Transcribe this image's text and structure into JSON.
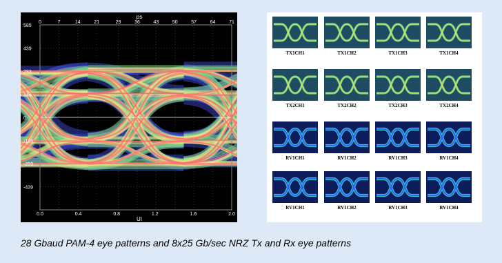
{
  "caption": "28 Gbaud PAM-4 eye patterns and 8x25 Gb/sec NRZ Tx and Rx eye patterns",
  "chart_data": [
    {
      "type": "eye-diagram",
      "modulation": "PAM-4",
      "top_axis": {
        "label": "ps",
        "ticks": [
          "0",
          "7",
          "14",
          "21",
          "29",
          "36",
          "43",
          "50",
          "57",
          "64",
          "71"
        ],
        "range": [
          0,
          71
        ]
      },
      "bottom_axis": {
        "label": "UI",
        "ticks": [
          "0.0",
          "0.4",
          "0.8",
          "1.2",
          "1.6",
          "2.0"
        ],
        "range": [
          0,
          2
        ]
      },
      "y_axis": {
        "ticks": [
          "585",
          "439",
          "293",
          "146",
          "0",
          "-146",
          "-293",
          "-439"
        ],
        "range": [
          -585,
          585
        ]
      },
      "levels": [
        -293,
        -146,
        146,
        293
      ],
      "grid": true,
      "colors": {
        "background": "#000000",
        "trace_high": "#ff6b6b",
        "trace_mid": "#e8e08a",
        "trace_low": "#7fd67f",
        "trace_edge": "#3a45c8",
        "axis_text": "#ffffff"
      }
    },
    {
      "type": "eye-diagram-grid",
      "modulation": "NRZ",
      "rows": 4,
      "cols": 4,
      "cells": [
        {
          "label": "TX1CH1",
          "kind": "tx"
        },
        {
          "label": "TX1CH2",
          "kind": "tx"
        },
        {
          "label": "TX1CH3",
          "kind": "tx"
        },
        {
          "label": "TX1CH4",
          "kind": "tx"
        },
        {
          "label": "TX2CH1",
          "kind": "tx"
        },
        {
          "label": "TX2CH2",
          "kind": "tx"
        },
        {
          "label": "TX2CH3",
          "kind": "tx"
        },
        {
          "label": "TX2CH4",
          "kind": "tx"
        },
        {
          "label": "RV1CH1",
          "kind": "rx"
        },
        {
          "label": "RV1CH2",
          "kind": "rx"
        },
        {
          "label": "RV1CH3",
          "kind": "rx"
        },
        {
          "label": "RV1CH4",
          "kind": "rx"
        },
        {
          "label": "RV1CH1",
          "kind": "rx"
        },
        {
          "label": "RV1CH2",
          "kind": "rx"
        },
        {
          "label": "RV1CH3",
          "kind": "rx"
        },
        {
          "label": "RV1CH4",
          "kind": "rx"
        }
      ],
      "colors": {
        "tx_background": "#1f4c63",
        "tx_trace": "#6fe08a",
        "tx_core": "#f0e060",
        "rx_background": "#0d1c5a",
        "rx_trace": "#38d8d8",
        "rx_core": "#3050ff"
      }
    }
  ]
}
